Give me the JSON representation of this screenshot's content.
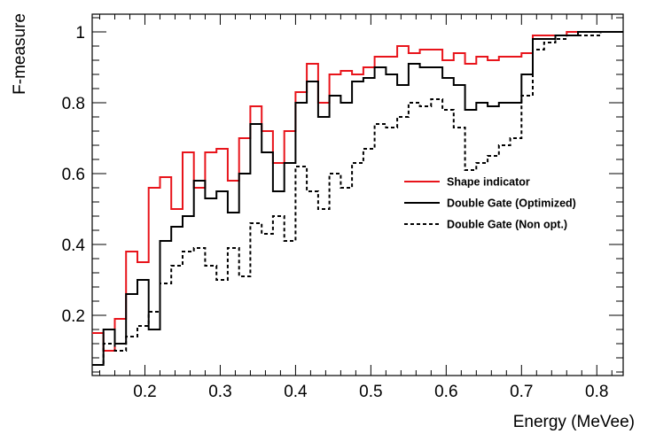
{
  "chart_data": {
    "type": "line",
    "xlabel": "Energy (MeVee)",
    "ylabel": "F-measure",
    "xlim": [
      0.13,
      0.835
    ],
    "ylim": [
      0.03,
      1.05
    ],
    "xticks": [
      0.2,
      0.3,
      0.4,
      0.5,
      0.6,
      0.7,
      0.8
    ],
    "xtick_labels": [
      "0.2",
      "0.3",
      "0.4",
      "0.5",
      "0.6",
      "0.7",
      "0.8"
    ],
    "yticks": [
      0.2,
      0.4,
      0.6,
      0.8,
      1.0
    ],
    "ytick_labels": [
      "0.2",
      "0.4",
      "0.6",
      "0.8",
      "1"
    ],
    "grid": false,
    "legend_position": "right-middle",
    "bin_edges": [
      0.13,
      0.145,
      0.16,
      0.175,
      0.19,
      0.205,
      0.22,
      0.235,
      0.25,
      0.265,
      0.28,
      0.295,
      0.31,
      0.325,
      0.34,
      0.355,
      0.37,
      0.385,
      0.4,
      0.415,
      0.43,
      0.445,
      0.46,
      0.475,
      0.49,
      0.505,
      0.52,
      0.535,
      0.55,
      0.565,
      0.58,
      0.595,
      0.61,
      0.625,
      0.64,
      0.655,
      0.67,
      0.685,
      0.7,
      0.715,
      0.73,
      0.745,
      0.76,
      0.775,
      0.79,
      0.805,
      0.82,
      0.835
    ],
    "series": [
      {
        "name": "Shape indicator",
        "color": "#e8141b",
        "style": "solid",
        "values": [
          0.15,
          0.1,
          0.19,
          0.38,
          0.35,
          0.56,
          0.59,
          0.5,
          0.66,
          0.56,
          0.66,
          0.67,
          0.58,
          0.7,
          0.79,
          0.72,
          0.63,
          0.72,
          0.83,
          0.91,
          0.8,
          0.88,
          0.89,
          0.88,
          0.9,
          0.93,
          0.93,
          0.96,
          0.94,
          0.95,
          0.95,
          0.92,
          0.94,
          0.91,
          0.93,
          0.92,
          0.93,
          0.93,
          0.94,
          0.99,
          0.99,
          0.99,
          1.0,
          1.0,
          1.0,
          1.0,
          1.0
        ]
      },
      {
        "name": "Double Gate (Optimized)",
        "color": "#000000",
        "style": "solid",
        "values": [
          0.06,
          0.16,
          0.12,
          0.26,
          0.3,
          0.16,
          0.41,
          0.45,
          0.48,
          0.58,
          0.53,
          0.55,
          0.49,
          0.6,
          0.74,
          0.66,
          0.55,
          0.63,
          0.8,
          0.86,
          0.76,
          0.82,
          0.8,
          0.86,
          0.87,
          0.9,
          0.88,
          0.85,
          0.91,
          0.9,
          0.9,
          0.87,
          0.85,
          0.78,
          0.8,
          0.79,
          0.8,
          0.8,
          0.88,
          0.98,
          0.98,
          0.99,
          0.99,
          1.0,
          1.0,
          1.0,
          1.0
        ]
      },
      {
        "name": "Double Gate (Non opt.)",
        "color": "#000000",
        "style": "dashed",
        "values": [
          0.06,
          0.12,
          0.1,
          0.14,
          0.17,
          0.21,
          0.29,
          0.34,
          0.38,
          0.39,
          0.34,
          0.3,
          0.39,
          0.31,
          0.46,
          0.43,
          0.48,
          0.41,
          0.62,
          0.55,
          0.5,
          0.6,
          0.56,
          0.63,
          0.67,
          0.74,
          0.73,
          0.76,
          0.8,
          0.79,
          0.81,
          0.78,
          0.73,
          0.61,
          0.63,
          0.65,
          0.68,
          0.7,
          0.82,
          0.95,
          0.97,
          0.98,
          0.99,
          0.99,
          0.99,
          1.0,
          1.0
        ]
      }
    ]
  }
}
